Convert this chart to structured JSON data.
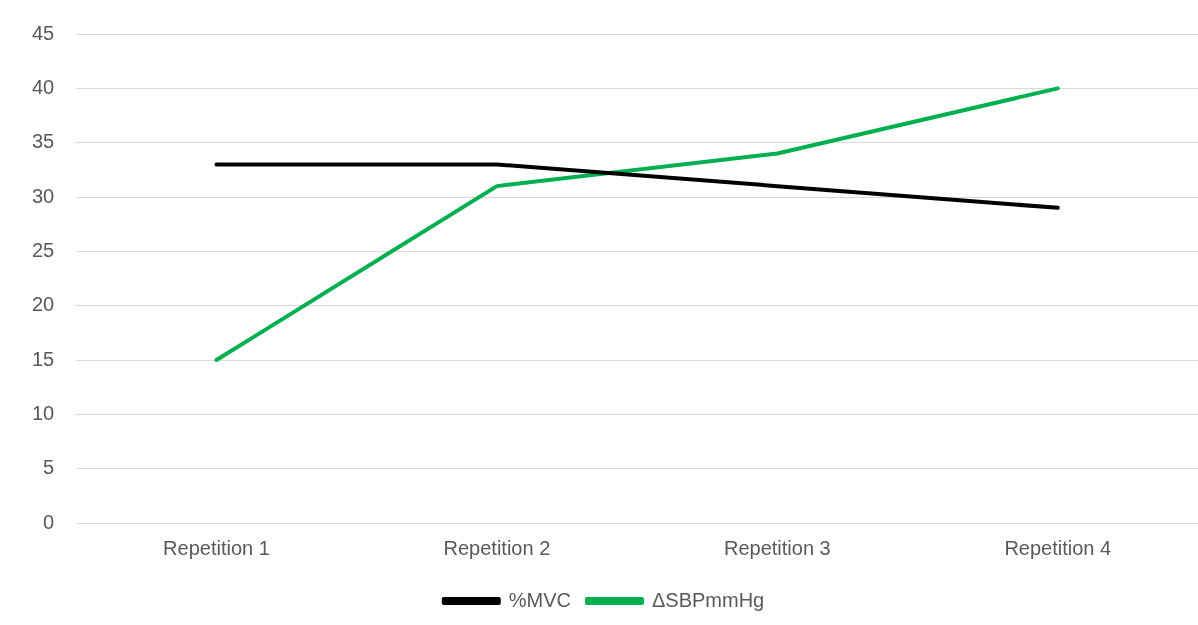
{
  "chart_data": {
    "type": "line",
    "categories": [
      "Repetition 1",
      "Repetition 2",
      "Repetition 3",
      "Repetition 4"
    ],
    "series": [
      {
        "name": "%MVC",
        "color": "#000000",
        "values": [
          33,
          33,
          31,
          29
        ]
      },
      {
        "name": "ΔSBPmmHg",
        "color": "#00b050",
        "values": [
          15,
          31,
          34,
          40
        ]
      }
    ],
    "ylim": [
      0,
      45
    ],
    "yticks": [
      0,
      5,
      10,
      15,
      20,
      25,
      30,
      35,
      40,
      45
    ],
    "grid": "y",
    "legend": "bottom",
    "marker": "none",
    "line_style": "solid"
  }
}
